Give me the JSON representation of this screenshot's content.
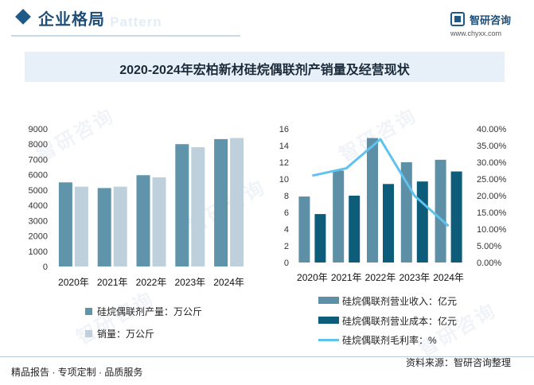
{
  "header": {
    "section_title": "企业格局",
    "ghost_text": "e Pattern",
    "brand_name": "智研咨询",
    "brand_url": "www.chyxx.com"
  },
  "chart_title": "2020-2024年宏柏新材硅烷偶联剂产销量及经营现状",
  "colors": {
    "production": "#6094ab",
    "sales": "#bdd0dc",
    "revenue": "#5d8fa6",
    "cost": "#0d5c7a",
    "margin": "#5fc3ee"
  },
  "chart_data": [
    {
      "type": "bar",
      "categories": [
        "2020年",
        "2021年",
        "2022年",
        "2023年",
        "2024年"
      ],
      "ylim": [
        0,
        9000
      ],
      "yticks": [
        "0",
        "1000",
        "2000",
        "3000",
        "4000",
        "5000",
        "6000",
        "7000",
        "8000",
        "9000"
      ],
      "series": [
        {
          "name": "硅烷偶联剂产量：万公斤",
          "values": [
            5500,
            5130,
            5970,
            8000,
            8330
          ]
        },
        {
          "name": "销量：万公斤",
          "values": [
            5220,
            5220,
            5830,
            7800,
            8400
          ]
        }
      ],
      "legend_position": "bottom"
    },
    {
      "type": "bar",
      "categories": [
        "2020年",
        "2021年",
        "2022年",
        "2023年",
        "2024年"
      ],
      "ylim": [
        0,
        16
      ],
      "yticks": [
        "0",
        "2",
        "4",
        "6",
        "8",
        "10",
        "12",
        "14",
        "16"
      ],
      "y2lim": [
        0,
        40
      ],
      "y2ticks": [
        "0.00%",
        "5.00%",
        "10.00%",
        "15.00%",
        "20.00%",
        "25.00%",
        "30.00%",
        "35.00%",
        "40.00%"
      ],
      "series": [
        {
          "name": "硅烷偶联剂营业收入：亿元",
          "type": "bar",
          "values": [
            7.9,
            11.0,
            14.9,
            12.0,
            12.3
          ]
        },
        {
          "name": "硅烷偶联剂营业成本：亿元",
          "type": "bar",
          "values": [
            5.8,
            8.0,
            9.4,
            9.7,
            10.9
          ]
        },
        {
          "name": "硅烷偶联剂毛利率：%",
          "type": "line",
          "axis": "right",
          "values": [
            26.0,
            28.2,
            36.9,
            20.0,
            10.9
          ]
        }
      ],
      "legend_position": "bottom"
    }
  ],
  "footer": {
    "left": "精品报告 · 专项定制 · 品质服务",
    "right": "资料来源：智研咨询整理"
  },
  "watermark_text": "智研咨询"
}
